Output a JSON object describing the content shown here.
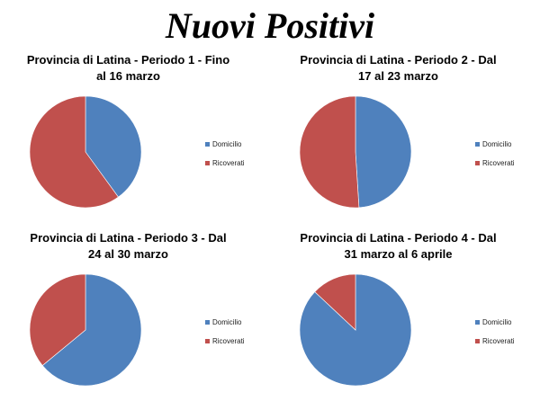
{
  "title": "Nuovi Positivi",
  "colors": {
    "domicilio": "#4F81BD",
    "ricoverati": "#C0504D"
  },
  "legend": [
    "Domicilio",
    "Ricoverati"
  ],
  "panels": [
    {
      "line1": "Provincia di Latina - Periodo 1 - Fino",
      "line2": "al 16 marzo"
    },
    {
      "line1": "Provincia di Latina - Periodo 2 - Dal",
      "line2": "17 al 23 marzo"
    },
    {
      "line1": "Provincia di Latina - Periodo 3 - Dal",
      "line2": "24 al 30 marzo"
    },
    {
      "line1": "Provincia di Latina - Periodo 4 - Dal",
      "line2": "31 marzo al 6 aprile"
    }
  ],
  "chart_data": [
    {
      "type": "pie",
      "title": "Provincia di Latina - Periodo 1 - Fino al 16 marzo",
      "categories": [
        "Domicilio",
        "Ricoverati"
      ],
      "values": [
        40,
        60
      ],
      "legend": "right"
    },
    {
      "type": "pie",
      "title": "Provincia di Latina - Periodo 2 - Dal 17 al 23 marzo",
      "categories": [
        "Domicilio",
        "Ricoverati"
      ],
      "values": [
        49,
        51
      ],
      "legend": "right"
    },
    {
      "type": "pie",
      "title": "Provincia di Latina - Periodo 3 - Dal 24 al 30 marzo",
      "categories": [
        "Domicilio",
        "Ricoverati"
      ],
      "values": [
        64,
        36
      ],
      "legend": "right"
    },
    {
      "type": "pie",
      "title": "Provincia di Latina - Periodo 4 - Dal 31 marzo al 6 aprile",
      "categories": [
        "Domicilio",
        "Ricoverati"
      ],
      "values": [
        87,
        13
      ],
      "legend": "right"
    }
  ]
}
